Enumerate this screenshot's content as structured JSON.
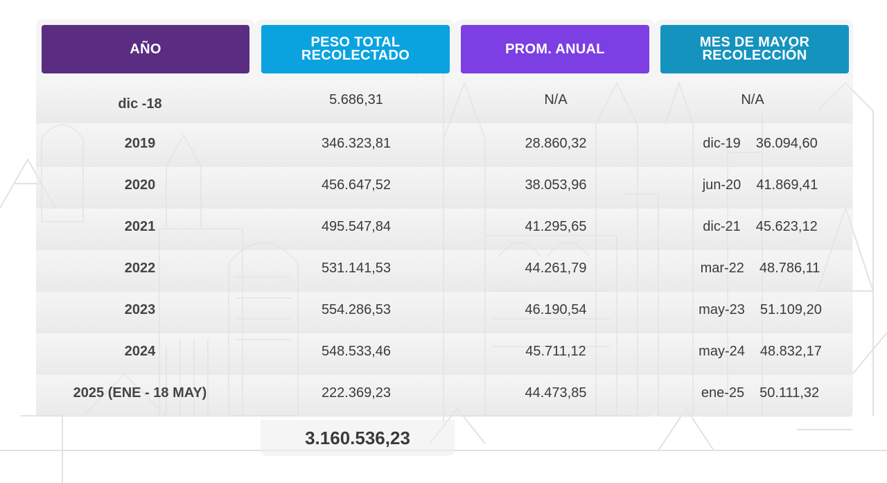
{
  "colors": {
    "year_header": "#5a2d82",
    "peso_header": "#0aa3e0",
    "prom_header": "#7b3fe4",
    "mes_header": "#1593bf"
  },
  "headers": {
    "year": "AÑO",
    "peso_line1": "PESO TOTAL",
    "peso_line2": "RECOLECTADO",
    "prom": "PROM. ANUAL",
    "mes_line1": "MES DE MAYOR",
    "mes_line2": "RECOLECCIÓN"
  },
  "rows": [
    {
      "year": "dic -18",
      "peso": "5.686,31",
      "prom": "N/A",
      "mes": "N/A",
      "mes_value": ""
    },
    {
      "year": "2019",
      "peso": "346.323,81",
      "prom": "28.860,32",
      "mes": "dic-19",
      "mes_value": "36.094,60"
    },
    {
      "year": "2020",
      "peso": "456.647,52",
      "prom": "38.053,96",
      "mes": "jun-20",
      "mes_value": "41.869,41"
    },
    {
      "year": "2021",
      "peso": "495.547,84",
      "prom": "41.295,65",
      "mes": "dic-21",
      "mes_value": "45.623,12"
    },
    {
      "year": "2022",
      "peso": "531.141,53",
      "prom": "44.261,79",
      "mes": "mar-22",
      "mes_value": "48.786,11"
    },
    {
      "year": "2023",
      "peso": "554.286,53",
      "prom": "46.190,54",
      "mes": "may-23",
      "mes_value": "51.109,20"
    },
    {
      "year": "2024",
      "peso": "548.533,46",
      "prom": "45.711,12",
      "mes": "may-24",
      "mes_value": "48.832,17"
    },
    {
      "year": "2025 (ENE - 18 MAY)",
      "peso": "222.369,23",
      "prom": "44.473,85",
      "mes": "ene-25",
      "mes_value": "50.111,32"
    }
  ],
  "total": "3.160.536,23"
}
